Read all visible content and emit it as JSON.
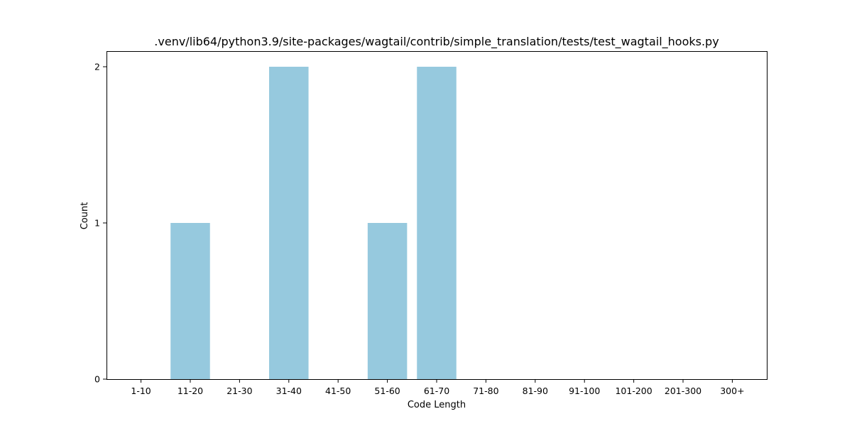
{
  "chart_data": {
    "type": "bar",
    "title": ".venv/lib64/python3.9/site-packages/wagtail/contrib/simple_translation/tests/test_wagtail_hooks.py",
    "xlabel": "Code Length",
    "ylabel": "Count",
    "categories": [
      "1-10",
      "11-20",
      "21-30",
      "31-40",
      "41-50",
      "51-60",
      "61-70",
      "71-80",
      "81-90",
      "91-100",
      "101-200",
      "201-300",
      "300+"
    ],
    "values": [
      0,
      1,
      0,
      2,
      0,
      1,
      2,
      0,
      0,
      0,
      0,
      0,
      0
    ],
    "ylim": [
      0,
      2.1
    ],
    "yticks": [
      0,
      1,
      2
    ],
    "bar_color": "#96c9de",
    "grid": false,
    "legend": "none"
  }
}
